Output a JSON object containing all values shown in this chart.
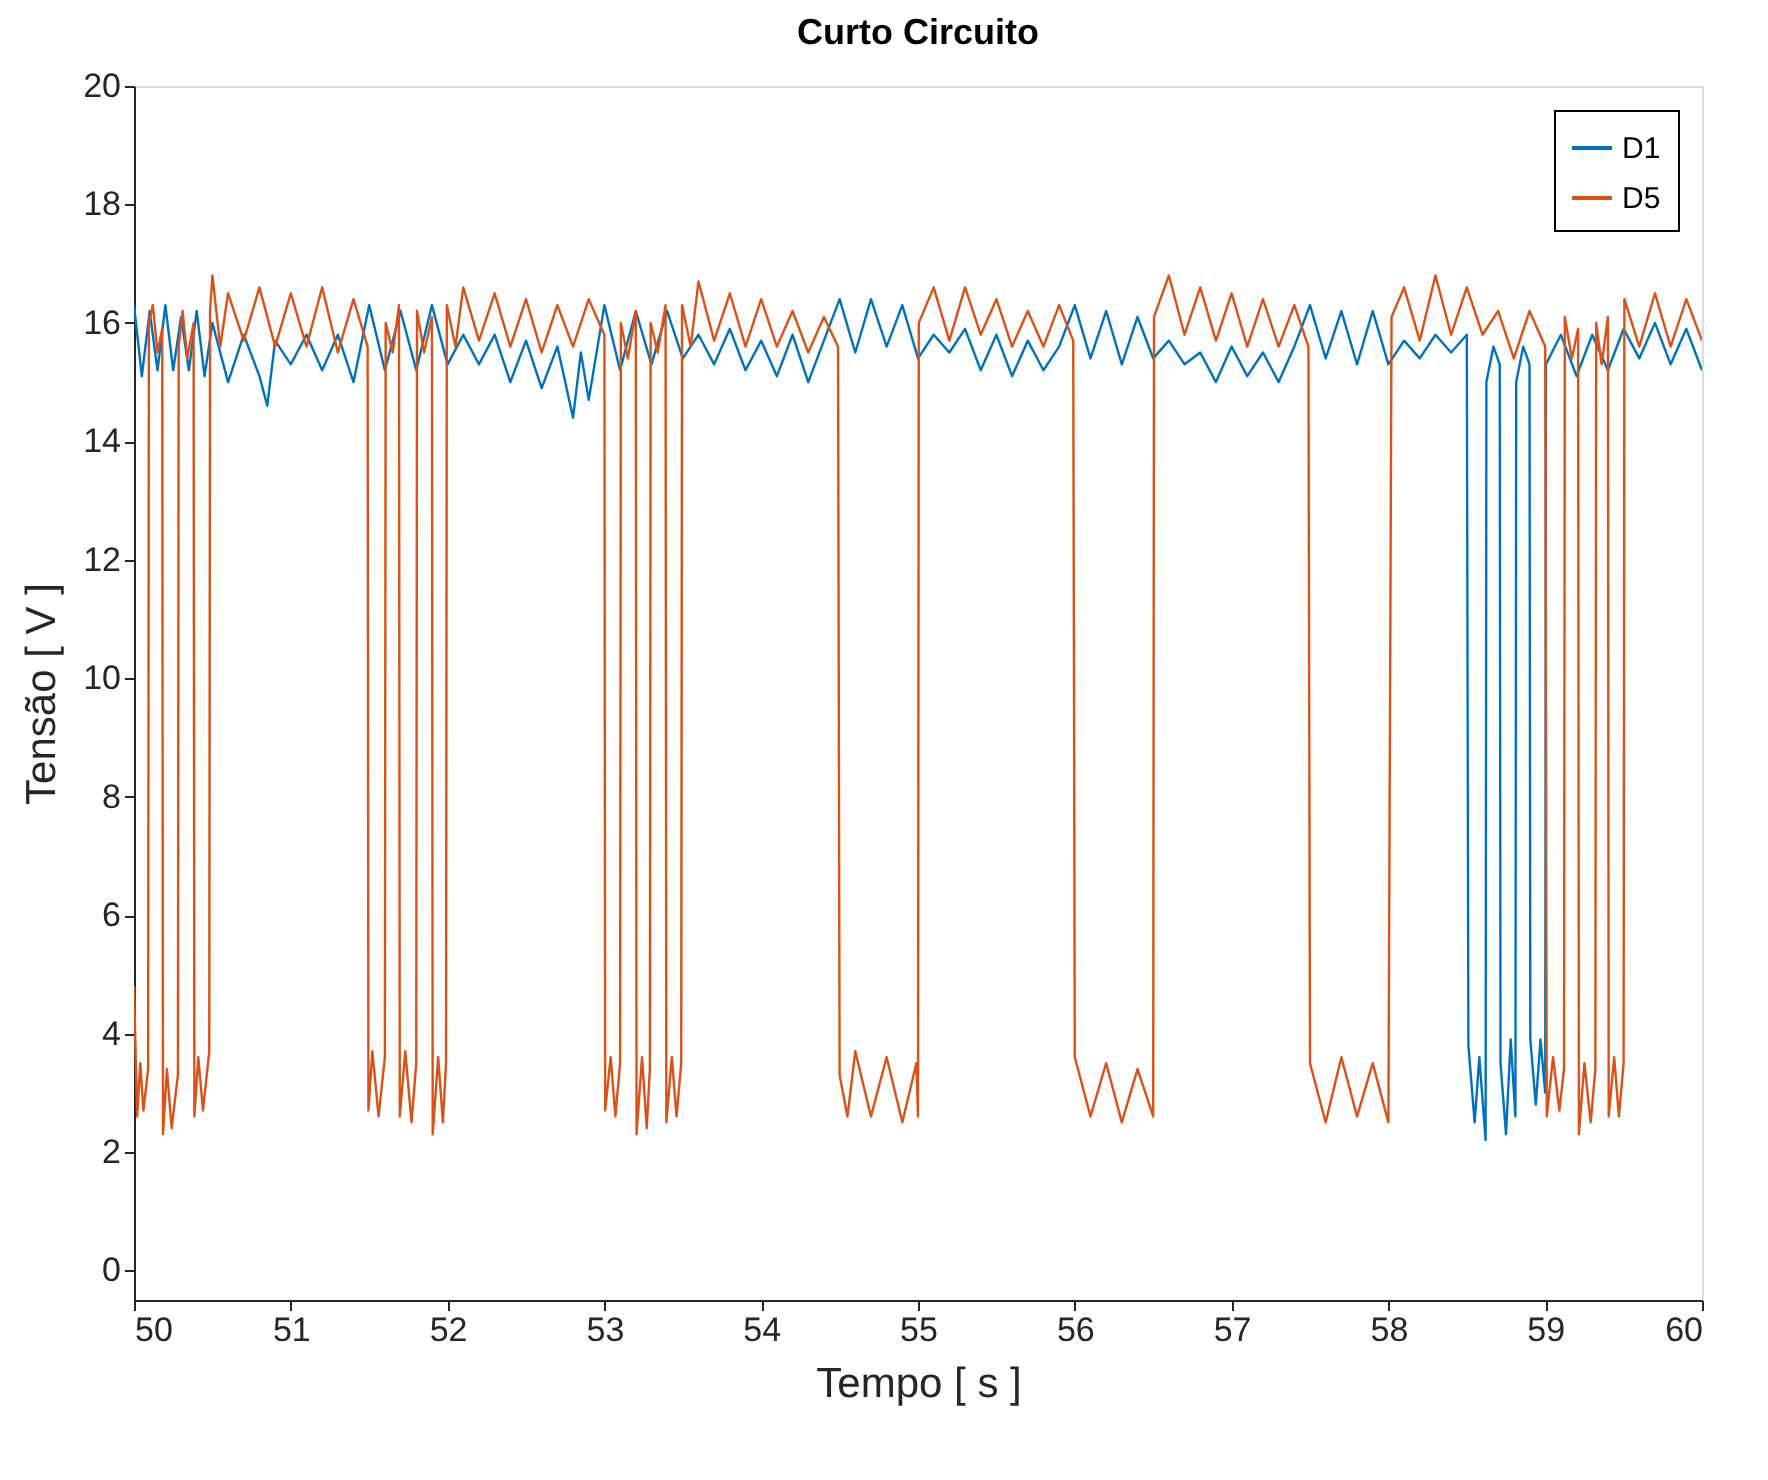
{
  "chart_data": {
    "type": "line",
    "title": "Curto Circuito",
    "xlabel": "Tempo [ s ]",
    "ylabel": "Tensão [ V ]",
    "xlim": [
      50,
      60
    ],
    "ylim": [
      -0.5,
      20
    ],
    "xticks": [
      50,
      51,
      52,
      53,
      54,
      55,
      56,
      57,
      58,
      59,
      60
    ],
    "yticks": [
      0,
      2,
      4,
      6,
      8,
      10,
      12,
      14,
      16,
      18,
      20
    ],
    "grid": false,
    "legend": "top right",
    "line_style": "solid",
    "marker": "none",
    "series": [
      {
        "name": "D1",
        "color": "#0072bd",
        "x": [
          50.0,
          50.05,
          50.1,
          50.15,
          50.2,
          50.25,
          50.3,
          50.35,
          50.4,
          50.45,
          50.5,
          50.6,
          50.7,
          50.8,
          50.85,
          50.9,
          51.0,
          51.1,
          51.2,
          51.3,
          51.4,
          51.5,
          51.6,
          51.7,
          51.8,
          51.9,
          52.0,
          52.1,
          52.2,
          52.3,
          52.4,
          52.5,
          52.6,
          52.7,
          52.8,
          52.85,
          52.9,
          53.0,
          53.1,
          53.2,
          53.3,
          53.4,
          53.5,
          53.6,
          53.7,
          53.8,
          53.9,
          54.0,
          54.1,
          54.2,
          54.3,
          54.4,
          54.5,
          54.6,
          54.7,
          54.8,
          54.9,
          55.0,
          55.1,
          55.2,
          55.3,
          55.4,
          55.5,
          55.6,
          55.7,
          55.8,
          55.9,
          56.0,
          56.1,
          56.2,
          56.3,
          56.4,
          56.5,
          56.6,
          56.7,
          56.8,
          56.9,
          57.0,
          57.1,
          57.2,
          57.3,
          57.4,
          57.5,
          57.6,
          57.7,
          57.8,
          57.9,
          58.0,
          58.1,
          58.2,
          58.3,
          58.4,
          58.5,
          58.51,
          58.55,
          58.58,
          58.62,
          58.625,
          58.67,
          58.71,
          58.715,
          58.75,
          58.78,
          58.81,
          58.815,
          58.86,
          58.9,
          58.905,
          58.94,
          58.97,
          59.0,
          59.005,
          59.1,
          59.2,
          59.3,
          59.4,
          59.5,
          59.6,
          59.7,
          59.8,
          59.9,
          60.0
        ],
        "values": [
          16.3,
          15.1,
          16.2,
          15.2,
          16.3,
          15.2,
          16.1,
          15.2,
          16.2,
          15.1,
          16.0,
          15.0,
          15.8,
          15.1,
          14.6,
          15.7,
          15.3,
          15.8,
          15.2,
          15.8,
          15.0,
          16.3,
          15.2,
          16.2,
          15.2,
          16.3,
          15.3,
          15.8,
          15.3,
          15.8,
          15.0,
          15.7,
          14.9,
          15.6,
          14.4,
          15.5,
          14.7,
          16.3,
          15.2,
          16.2,
          15.3,
          16.2,
          15.4,
          15.8,
          15.3,
          15.9,
          15.2,
          15.7,
          15.1,
          15.8,
          15.0,
          15.7,
          16.4,
          15.5,
          16.4,
          15.6,
          16.3,
          15.4,
          15.8,
          15.5,
          15.9,
          15.2,
          15.8,
          15.1,
          15.7,
          15.2,
          15.6,
          16.3,
          15.4,
          16.2,
          15.3,
          16.1,
          15.4,
          15.7,
          15.3,
          15.5,
          15.0,
          15.6,
          15.1,
          15.5,
          15.0,
          15.6,
          16.3,
          15.4,
          16.2,
          15.3,
          16.2,
          15.3,
          15.7,
          15.4,
          15.8,
          15.5,
          15.8,
          3.8,
          2.5,
          3.6,
          2.2,
          15.0,
          15.6,
          15.3,
          3.5,
          2.3,
          3.9,
          2.6,
          15.0,
          15.6,
          15.3,
          3.9,
          2.8,
          3.9,
          3.0,
          15.3,
          15.8,
          15.1,
          15.8,
          15.2,
          15.9,
          15.4,
          16.0,
          15.3,
          15.9,
          15.2
        ]
      },
      {
        "name": "D5",
        "color": "#d95319",
        "x": [
          50.0,
          50.02,
          50.04,
          50.06,
          50.09,
          50.095,
          50.12,
          50.15,
          50.18,
          50.185,
          50.21,
          50.24,
          50.28,
          50.285,
          50.31,
          50.34,
          50.38,
          50.385,
          50.41,
          50.44,
          50.48,
          50.485,
          50.5,
          50.55,
          50.6,
          50.7,
          50.8,
          50.9,
          51.0,
          51.1,
          51.2,
          51.3,
          51.4,
          51.49,
          51.495,
          51.52,
          51.56,
          51.6,
          51.605,
          51.65,
          51.69,
          51.695,
          51.73,
          51.77,
          51.8,
          51.805,
          51.85,
          51.9,
          51.905,
          51.94,
          51.97,
          51.99,
          51.995,
          52.05,
          52.1,
          52.2,
          52.3,
          52.4,
          52.5,
          52.6,
          52.7,
          52.8,
          52.9,
          53.0,
          53.005,
          53.04,
          53.07,
          53.1,
          53.105,
          53.15,
          53.2,
          53.205,
          53.24,
          53.27,
          53.29,
          53.295,
          53.34,
          53.39,
          53.395,
          53.43,
          53.46,
          53.49,
          53.495,
          53.55,
          53.6,
          53.7,
          53.8,
          53.9,
          54.0,
          54.1,
          54.2,
          54.3,
          54.4,
          54.49,
          54.5,
          54.55,
          54.6,
          54.7,
          54.8,
          54.9,
          54.99,
          55.0,
          55.005,
          55.1,
          55.2,
          55.3,
          55.4,
          55.5,
          55.6,
          55.7,
          55.8,
          55.9,
          55.99,
          56.0,
          56.1,
          56.2,
          56.3,
          56.4,
          56.5,
          56.505,
          56.6,
          56.7,
          56.8,
          56.9,
          57.0,
          57.1,
          57.2,
          57.3,
          57.4,
          57.49,
          57.5,
          57.6,
          57.7,
          57.8,
          57.9,
          58.0,
          58.02,
          58.1,
          58.2,
          58.3,
          58.4,
          58.5,
          58.6,
          58.7,
          58.8,
          58.9,
          59.0,
          59.01,
          59.05,
          59.09,
          59.12,
          59.125,
          59.17,
          59.21,
          59.215,
          59.25,
          59.29,
          59.32,
          59.325,
          59.36,
          59.4,
          59.405,
          59.44,
          59.47,
          59.5,
          59.505,
          59.6,
          59.7,
          59.8,
          59.9,
          60.0
        ],
        "values": [
          4.8,
          2.6,
          3.5,
          2.7,
          3.4,
          16.0,
          16.3,
          15.5,
          15.9,
          2.3,
          3.4,
          2.4,
          3.3,
          15.6,
          16.2,
          15.4,
          16.0,
          2.6,
          3.6,
          2.7,
          3.7,
          16.2,
          16.8,
          15.6,
          16.5,
          15.7,
          16.6,
          15.6,
          16.5,
          15.6,
          16.6,
          15.5,
          16.4,
          15.6,
          2.7,
          3.7,
          2.6,
          3.6,
          16.0,
          15.5,
          16.3,
          2.6,
          3.7,
          2.5,
          3.5,
          16.2,
          15.5,
          16.1,
          2.3,
          3.6,
          2.5,
          3.5,
          16.3,
          15.6,
          16.6,
          15.7,
          16.5,
          15.6,
          16.4,
          15.5,
          16.3,
          15.6,
          16.4,
          15.8,
          2.7,
          3.6,
          2.6,
          3.5,
          16.0,
          15.4,
          16.2,
          2.3,
          3.6,
          2.4,
          3.4,
          16.0,
          15.5,
          16.3,
          2.5,
          3.6,
          2.6,
          3.5,
          16.3,
          15.6,
          16.7,
          15.7,
          16.5,
          15.6,
          16.4,
          15.6,
          16.2,
          15.5,
          16.1,
          15.6,
          3.3,
          2.6,
          3.7,
          2.6,
          3.6,
          2.5,
          3.5,
          2.6,
          16.0,
          16.6,
          15.7,
          16.6,
          15.8,
          16.4,
          15.6,
          16.2,
          15.6,
          16.3,
          15.7,
          3.6,
          2.6,
          3.5,
          2.5,
          3.4,
          2.6,
          16.1,
          16.8,
          15.8,
          16.6,
          15.7,
          16.5,
          15.6,
          16.4,
          15.6,
          16.3,
          15.6,
          3.5,
          2.5,
          3.6,
          2.6,
          3.5,
          2.5,
          16.1,
          16.6,
          15.7,
          16.8,
          15.8,
          16.6,
          15.8,
          16.2,
          15.4,
          16.2,
          15.6,
          2.6,
          3.6,
          2.7,
          3.4,
          16.1,
          15.4,
          15.9,
          2.3,
          3.5,
          2.5,
          3.4,
          16.0,
          15.3,
          16.1,
          2.6,
          3.6,
          2.6,
          3.5,
          16.4,
          15.6,
          16.5,
          15.6,
          16.4,
          15.7
        ]
      }
    ]
  }
}
